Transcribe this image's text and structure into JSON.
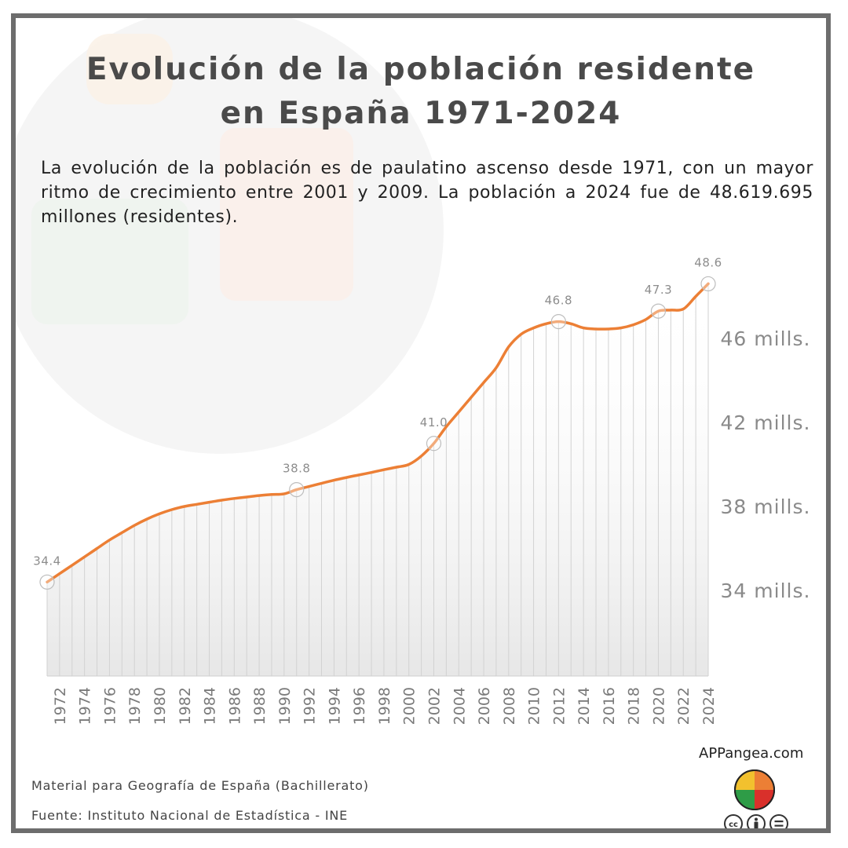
{
  "title": {
    "line1": "Evolución de la población residente",
    "line2": "en España 1971-2024"
  },
  "intro": "La evolución de la población es de paulatino ascenso desde 1971, con un mayor ritmo de crecimiento entre 2001 y 2009. La población a 2024 fue de 48.619.695 millones (residentes).",
  "chart_data": {
    "type": "area",
    "title": "Evolución de la población residente en España 1971-2024",
    "xlabel": "",
    "ylabel": "",
    "ylim": [
      30,
      49
    ],
    "yticks": [
      {
        "value": 34,
        "label": "34 mills."
      },
      {
        "value": 38,
        "label": "38 mills."
      },
      {
        "value": 42,
        "label": "42 mills."
      },
      {
        "value": 46,
        "label": "46 mills."
      }
    ],
    "xtick_labels": [
      "1972",
      "1974",
      "1976",
      "1978",
      "1980",
      "1982",
      "1984",
      "1986",
      "1988",
      "1990",
      "1992",
      "1994",
      "1996",
      "1998",
      "2000",
      "2002",
      "2004",
      "2006",
      "2008",
      "2010",
      "2012",
      "2014",
      "2016",
      "2018",
      "2020",
      "2022",
      "2024"
    ],
    "grid": "vertical",
    "line_color": "#ec7f35",
    "x": [
      1971,
      1972,
      1973,
      1974,
      1975,
      1976,
      1977,
      1978,
      1979,
      1980,
      1981,
      1982,
      1983,
      1984,
      1985,
      1986,
      1987,
      1988,
      1989,
      1990,
      1991,
      1992,
      1993,
      1994,
      1995,
      1996,
      1997,
      1998,
      1999,
      2000,
      2001,
      2002,
      2003,
      2004,
      2005,
      2006,
      2007,
      2008,
      2009,
      2010,
      2011,
      2012,
      2013,
      2014,
      2015,
      2016,
      2017,
      2018,
      2019,
      2020,
      2021,
      2022,
      2023,
      2024
    ],
    "values": [
      34.4,
      34.8,
      35.2,
      35.6,
      36.0,
      36.4,
      36.75,
      37.1,
      37.4,
      37.65,
      37.85,
      38.0,
      38.1,
      38.2,
      38.3,
      38.38,
      38.45,
      38.52,
      38.57,
      38.6,
      38.8,
      38.95,
      39.1,
      39.25,
      39.38,
      39.5,
      39.62,
      39.75,
      39.87,
      40.0,
      40.4,
      41.0,
      41.8,
      42.5,
      43.2,
      43.9,
      44.6,
      45.6,
      46.2,
      46.5,
      46.7,
      46.8,
      46.7,
      46.5,
      46.45,
      46.45,
      46.5,
      46.65,
      46.9,
      47.3,
      47.35,
      47.4,
      48.0,
      48.6
    ],
    "labels": [
      {
        "year": 1971,
        "text": "34.4"
      },
      {
        "year": 1991,
        "text": "38.8"
      },
      {
        "year": 2002,
        "text": "41.0"
      },
      {
        "year": 2012,
        "text": "46.8"
      },
      {
        "year": 2020,
        "text": "47.3"
      },
      {
        "year": 2024,
        "text": "48.6"
      }
    ]
  },
  "footer": {
    "site": "APPangea.com",
    "material": "Material para Geografía de España (Bachillerato)",
    "source": "Fuente: Instituto Nacional de Estadística - INE"
  },
  "colors": {
    "accent": "#ec7f35",
    "frame": "#6d6d6d",
    "logo_green": "#2e9c47",
    "logo_red": "#d9302b",
    "logo_yellow": "#f2c12e",
    "logo_orange": "#ec7f35"
  },
  "icons": [
    "puzzle-logo-icon",
    "cc-icon",
    "by-icon",
    "nd-icon"
  ]
}
